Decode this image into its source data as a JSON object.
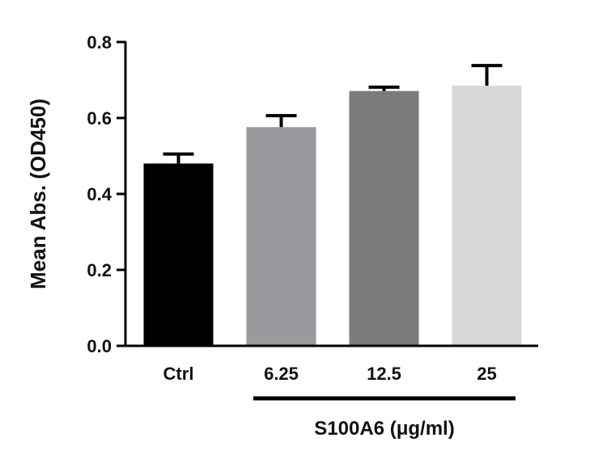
{
  "chart_data": {
    "type": "bar",
    "title": "",
    "ylabel": "Mean  Abs. (OD450)",
    "xlabel": "",
    "ylim": [
      0,
      0.8
    ],
    "yticks": [
      0.0,
      0.2,
      0.4,
      0.6,
      0.8
    ],
    "ytick_labels": [
      "0.0",
      "0.2",
      "0.4",
      "0.6",
      "0.8"
    ],
    "categories": [
      "Ctrl",
      "6.25",
      "12.5",
      "25"
    ],
    "values": [
      0.48,
      0.576,
      0.671,
      0.685
    ],
    "errors": [
      0.025,
      0.03,
      0.01,
      0.053
    ],
    "bar_colors": [
      "#000000",
      "#9a9a9e",
      "#7b7b7b",
      "#d8d8d8"
    ],
    "group_label": "S100A6 (μg/ml)",
    "grid": false,
    "legend": "none"
  }
}
